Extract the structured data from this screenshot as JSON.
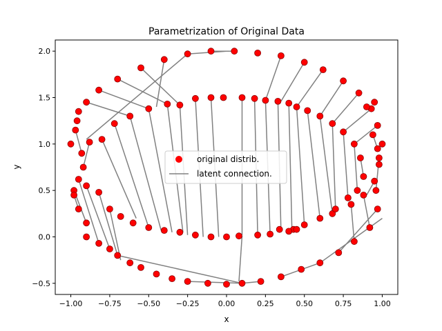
{
  "chart_data": {
    "type": "scatter",
    "title": "Parametrization of Original Data",
    "xlabel": "x",
    "ylabel": "y",
    "xlim": [
      -1.1,
      1.1
    ],
    "ylim": [
      -0.62,
      2.12
    ],
    "xticks": [
      -1.0,
      -0.75,
      -0.5,
      -0.25,
      0.0,
      0.25,
      0.5,
      0.75,
      1.0
    ],
    "xtick_labels": [
      "−1.00",
      "−0.75",
      "−0.50",
      "−0.25",
      "0.00",
      "0.25",
      "0.50",
      "0.75",
      "1.00"
    ],
    "yticks": [
      -0.5,
      0.0,
      0.5,
      1.0,
      1.5,
      2.0
    ],
    "ytick_labels": [
      "−0.5",
      "0.0",
      "0.5",
      "1.0",
      "1.5",
      "2.0"
    ],
    "grid": false,
    "legend": {
      "location": "center",
      "entries": [
        {
          "label": "original distrib.",
          "kind": "marker",
          "color": "#ff0000"
        },
        {
          "label": "latent connection.",
          "kind": "line",
          "color": "#808080"
        }
      ]
    },
    "series": [
      {
        "name": "original distrib.",
        "kind": "scatter",
        "color": "#ff0000",
        "edgecolor": "#8b0000",
        "points": [
          [
            -1.0,
            1.0
          ],
          [
            -0.96,
            1.25
          ],
          [
            -0.9,
            1.45
          ],
          [
            -0.82,
            1.58
          ],
          [
            -0.7,
            1.7
          ],
          [
            -0.55,
            1.82
          ],
          [
            -0.4,
            1.91
          ],
          [
            -0.25,
            1.97
          ],
          [
            -0.1,
            2.0
          ],
          [
            0.05,
            2.0
          ],
          [
            0.2,
            1.98
          ],
          [
            0.35,
            1.95
          ],
          [
            0.5,
            1.88
          ],
          [
            0.62,
            1.8
          ],
          [
            0.75,
            1.68
          ],
          [
            0.85,
            1.55
          ],
          [
            0.93,
            1.38
          ],
          [
            0.97,
            1.2
          ],
          [
            1.0,
            1.0
          ],
          [
            0.98,
            0.78
          ],
          [
            0.95,
            0.6
          ],
          [
            0.88,
            0.45
          ],
          [
            0.8,
            0.35
          ],
          [
            0.68,
            0.25
          ],
          [
            -0.8,
            1.05
          ],
          [
            -0.72,
            1.22
          ],
          [
            -0.62,
            1.3
          ],
          [
            -0.5,
            1.38
          ],
          [
            -0.38,
            1.43
          ],
          [
            -0.3,
            1.42
          ],
          [
            -0.2,
            1.49
          ],
          [
            -0.1,
            1.5
          ],
          [
            -0.02,
            1.5
          ],
          [
            0.1,
            1.5
          ],
          [
            0.18,
            1.49
          ],
          [
            0.25,
            1.47
          ],
          [
            0.33,
            1.46
          ],
          [
            0.4,
            1.44
          ],
          [
            0.45,
            1.4
          ],
          [
            0.52,
            1.36
          ],
          [
            0.6,
            1.3
          ],
          [
            0.68,
            1.22
          ],
          [
            0.75,
            1.13
          ],
          [
            0.82,
            1.0
          ],
          [
            0.86,
            0.85
          ],
          [
            0.88,
            0.65
          ],
          [
            0.84,
            0.5
          ],
          [
            0.78,
            0.42
          ],
          [
            0.7,
            0.3
          ],
          [
            0.6,
            0.2
          ],
          [
            0.5,
            0.13
          ],
          [
            0.43,
            0.08
          ],
          [
            0.34,
            0.08
          ],
          [
            -0.95,
            0.3
          ],
          [
            -0.9,
            0.15
          ],
          [
            -0.82,
            -0.07
          ],
          [
            -0.75,
            -0.13
          ],
          [
            -0.7,
            -0.2
          ],
          [
            -0.62,
            -0.28
          ],
          [
            -0.55,
            -0.33
          ],
          [
            -0.45,
            -0.4
          ],
          [
            -0.35,
            -0.45
          ],
          [
            -0.25,
            -0.48
          ],
          [
            -0.12,
            -0.5
          ],
          [
            0.0,
            -0.51
          ],
          [
            0.1,
            -0.5
          ],
          [
            0.22,
            -0.48
          ],
          [
            0.35,
            -0.43
          ],
          [
            0.48,
            -0.35
          ],
          [
            0.6,
            -0.28
          ],
          [
            0.72,
            -0.17
          ],
          [
            0.82,
            -0.05
          ],
          [
            0.92,
            0.1
          ],
          [
            0.97,
            0.3
          ],
          [
            -0.98,
            0.5
          ],
          [
            -0.95,
            0.62
          ],
          [
            -0.9,
            0.55
          ],
          [
            -0.82,
            0.48
          ],
          [
            -0.75,
            0.3
          ],
          [
            -0.68,
            0.22
          ],
          [
            -0.6,
            0.15
          ],
          [
            -0.5,
            0.1
          ],
          [
            -0.4,
            0.07
          ],
          [
            -0.3,
            0.05
          ],
          [
            -0.2,
            0.02
          ],
          [
            -0.1,
            0.0
          ],
          [
            0.0,
            0.0
          ],
          [
            0.08,
            0.01
          ],
          [
            0.2,
            0.02
          ],
          [
            0.28,
            0.03
          ],
          [
            0.4,
            0.06
          ],
          [
            0.45,
            0.08
          ],
          [
            -0.97,
            1.15
          ],
          [
            -0.93,
            0.9
          ],
          [
            -0.88,
            1.02
          ],
          [
            -0.92,
            0.75
          ],
          [
            -0.95,
            1.35
          ],
          [
            -0.9,
            0.0
          ],
          [
            -0.98,
            0.45
          ],
          [
            0.96,
            0.5
          ],
          [
            0.98,
            0.85
          ],
          [
            0.97,
            0.95
          ],
          [
            0.94,
            1.1
          ],
          [
            0.9,
            1.4
          ],
          [
            0.95,
            1.45
          ]
        ]
      },
      {
        "name": "latent connection.",
        "kind": "segments",
        "color": "#808080",
        "segments": [
          [
            [
              -0.9,
              1.45
            ],
            [
              -0.62,
              1.3
            ]
          ],
          [
            [
              -0.82,
              1.58
            ],
            [
              -0.5,
              1.38
            ]
          ],
          [
            [
              -0.7,
              1.7
            ],
            [
              -0.38,
              1.43
            ]
          ],
          [
            [
              -0.55,
              1.82
            ],
            [
              -0.3,
              1.42
            ]
          ],
          [
            [
              -0.4,
              1.91
            ],
            [
              -0.45,
              1.4
            ]
          ],
          [
            [
              -0.9,
              1.05
            ],
            [
              -0.25,
              1.97
            ]
          ],
          [
            [
              -0.25,
              1.97
            ],
            [
              0.0,
              2.0
            ]
          ],
          [
            [
              -0.1,
              2.0
            ],
            [
              0.05,
              2.0
            ]
          ],
          [
            [
              0.35,
              1.95
            ],
            [
              0.25,
              1.47
            ]
          ],
          [
            [
              0.5,
              1.88
            ],
            [
              0.35,
              1.46
            ]
          ],
          [
            [
              0.62,
              1.8
            ],
            [
              0.45,
              1.4
            ]
          ],
          [
            [
              0.75,
              1.68
            ],
            [
              0.6,
              1.3
            ]
          ],
          [
            [
              0.85,
              1.55
            ],
            [
              0.68,
              1.22
            ]
          ],
          [
            [
              0.93,
              1.38
            ],
            [
              0.75,
              1.13
            ]
          ],
          [
            [
              0.97,
              1.2
            ],
            [
              0.82,
              1.0
            ]
          ],
          [
            [
              -0.8,
              1.05
            ],
            [
              -0.58,
              0.2
            ]
          ],
          [
            [
              -0.72,
              1.22
            ],
            [
              -0.5,
              0.1
            ]
          ],
          [
            [
              -0.62,
              1.3
            ],
            [
              -0.42,
              0.07
            ]
          ],
          [
            [
              -0.5,
              1.38
            ],
            [
              -0.35,
              0.05
            ]
          ],
          [
            [
              -0.38,
              1.43
            ],
            [
              -0.28,
              0.05
            ]
          ],
          [
            [
              -0.3,
              1.42
            ],
            [
              -0.25,
              0.02
            ]
          ],
          [
            [
              -0.2,
              1.49
            ],
            [
              -0.15,
              0.0
            ]
          ],
          [
            [
              -0.1,
              1.5
            ],
            [
              -0.05,
              0.0
            ]
          ],
          [
            [
              0.1,
              1.5
            ],
            [
              0.1,
              0.02
            ]
          ],
          [
            [
              0.18,
              1.49
            ],
            [
              0.2,
              0.02
            ]
          ],
          [
            [
              0.25,
              1.47
            ],
            [
              0.28,
              0.03
            ]
          ],
          [
            [
              0.33,
              1.46
            ],
            [
              0.35,
              0.05
            ]
          ],
          [
            [
              0.4,
              1.44
            ],
            [
              0.42,
              0.08
            ]
          ],
          [
            [
              0.45,
              1.4
            ],
            [
              0.5,
              0.13
            ]
          ],
          [
            [
              0.52,
              1.36
            ],
            [
              0.6,
              0.2
            ]
          ],
          [
            [
              0.6,
              1.3
            ],
            [
              0.68,
              0.25
            ]
          ],
          [
            [
              0.68,
              1.22
            ],
            [
              0.7,
              0.3
            ]
          ],
          [
            [
              0.75,
              1.13
            ],
            [
              0.78,
              0.42
            ]
          ],
          [
            [
              0.82,
              1.0
            ],
            [
              0.84,
              0.5
            ]
          ],
          [
            [
              0.86,
              0.85
            ],
            [
              0.88,
              0.65
            ]
          ],
          [
            [
              0.95,
              0.6
            ],
            [
              0.9,
              0.45
            ]
          ],
          [
            [
              0.88,
              0.45
            ],
            [
              0.92,
              0.1
            ]
          ],
          [
            [
              0.8,
              0.35
            ],
            [
              0.82,
              -0.05
            ]
          ],
          [
            [
              0.97,
              0.3
            ],
            [
              0.72,
              -0.17
            ]
          ],
          [
            [
              1.0,
              0.2
            ],
            [
              0.6,
              -0.28
            ]
          ],
          [
            [
              -0.98,
              0.5
            ],
            [
              -0.9,
              0.15
            ]
          ],
          [
            [
              -0.95,
              0.62
            ],
            [
              -0.82,
              -0.07
            ]
          ],
          [
            [
              -0.9,
              0.55
            ],
            [
              -0.75,
              -0.13
            ]
          ],
          [
            [
              -0.82,
              0.48
            ],
            [
              -0.7,
              -0.2
            ]
          ],
          [
            [
              -0.75,
              0.3
            ],
            [
              -0.68,
              -0.25
            ]
          ],
          [
            [
              -0.7,
              -0.2
            ],
            [
              0.1,
              -0.5
            ]
          ],
          [
            [
              0.1,
              -0.5
            ],
            [
              0.22,
              -0.48
            ]
          ],
          [
            [
              -0.25,
              -0.48
            ],
            [
              0.1,
              -0.5
            ]
          ],
          [
            [
              0.35,
              -0.43
            ],
            [
              0.6,
              -0.28
            ]
          ],
          [
            [
              0.08,
              -0.48
            ],
            [
              0.1,
              0.01
            ]
          ],
          [
            [
              -0.97,
              1.15
            ],
            [
              -0.93,
              0.9
            ]
          ],
          [
            [
              -0.92,
              0.75
            ],
            [
              -0.88,
              1.02
            ]
          ],
          [
            [
              -0.98,
              0.45
            ],
            [
              -0.95,
              0.3
            ]
          ],
          [
            [
              0.96,
              0.5
            ],
            [
              0.98,
              0.85
            ]
          ],
          [
            [
              0.97,
              0.95
            ],
            [
              0.94,
              1.1
            ]
          ]
        ]
      }
    ]
  }
}
